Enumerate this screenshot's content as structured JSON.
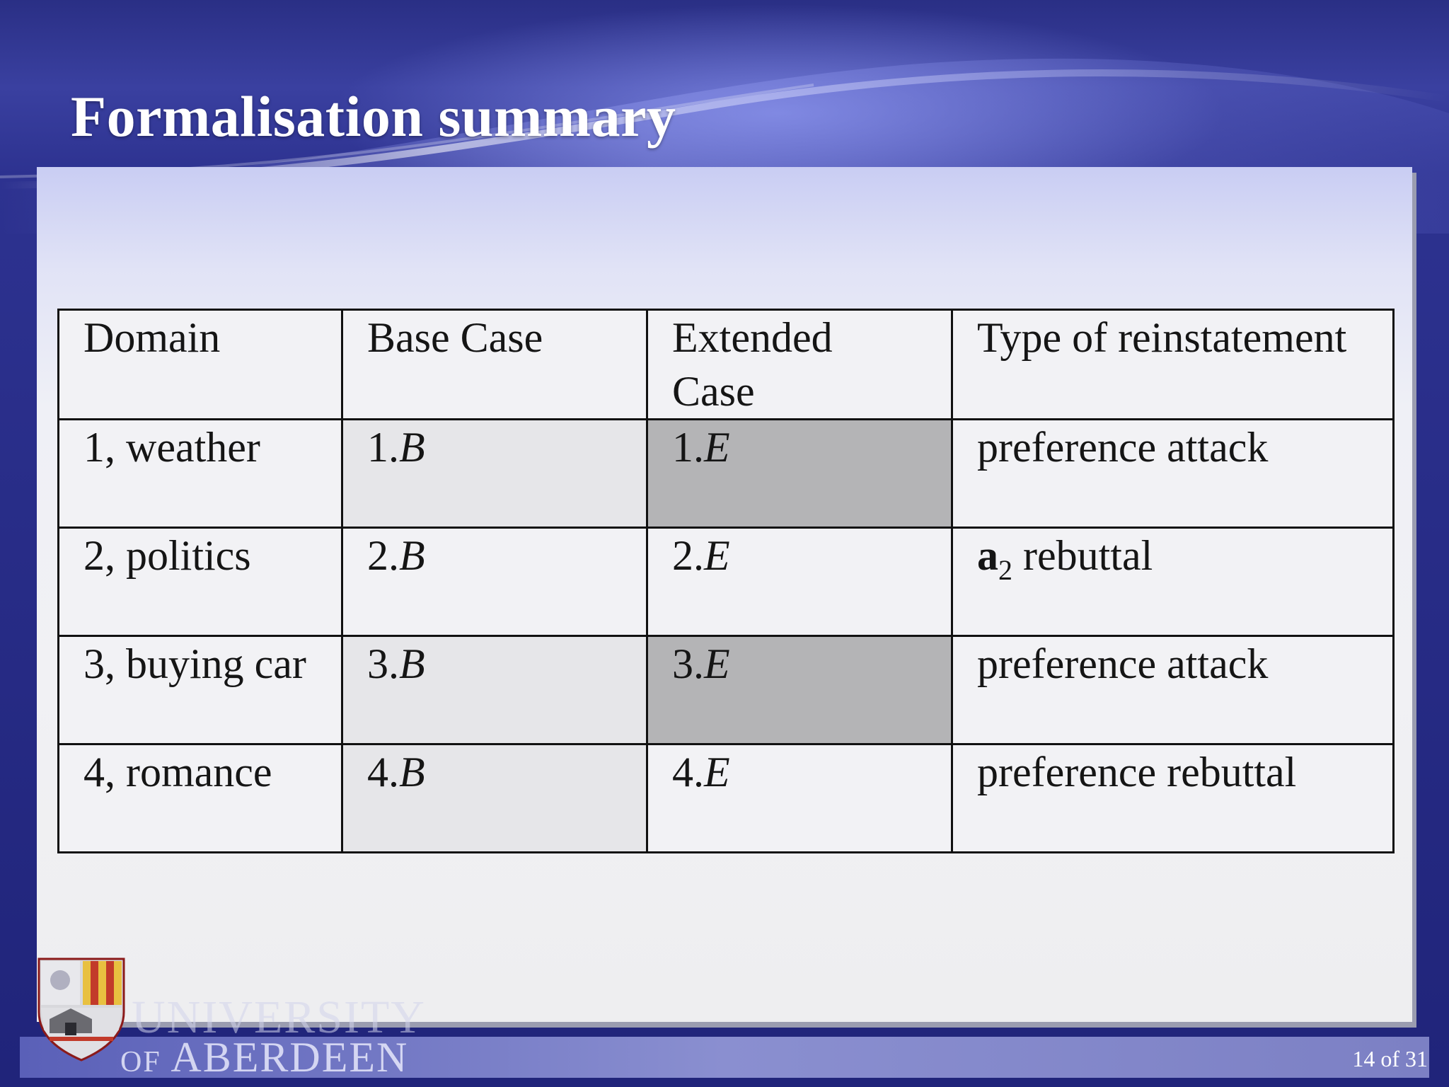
{
  "title": "Formalisation summary",
  "table": {
    "headers": [
      "Domain",
      "Base Case",
      "Extended Case",
      "Type of reinstatement"
    ],
    "header_extended_line1": "Extended",
    "header_extended_line2": "Case",
    "rows": [
      {
        "domain": "1, weather",
        "base_num": "1.",
        "base_letter": "B",
        "ext_num": "1.",
        "ext_letter": "E",
        "type": "preference attack",
        "base_shade": "light",
        "ext_shade": "dark"
      },
      {
        "domain": "2, politics",
        "base_num": "2.",
        "base_letter": "B",
        "ext_num": "2.",
        "ext_letter": "E",
        "type_symbol": "a",
        "type_subscript": "2",
        "type_rest": " rebuttal",
        "base_shade": "white",
        "ext_shade": "white"
      },
      {
        "domain": "3, buying car",
        "base_num": "3.",
        "base_letter": "B",
        "ext_num": "3.",
        "ext_letter": "E",
        "type": "preference attack",
        "base_shade": "light",
        "ext_shade": "dark"
      },
      {
        "domain": "4, romance",
        "base_num": "4.",
        "base_letter": "B",
        "ext_num": "4.",
        "ext_letter": "E",
        "type": "preference rebuttal",
        "base_shade": "light",
        "ext_shade": "white"
      }
    ]
  },
  "footer": {
    "university_line1": "UNIVERSITY",
    "university_of": "OF",
    "university_line2": "ABERDEEN",
    "page_number": "14 of 31"
  },
  "colors": {
    "header_bg": "#2c3590",
    "light_cell": "#e6e6e9",
    "dark_cell": "#b4b4b6"
  }
}
